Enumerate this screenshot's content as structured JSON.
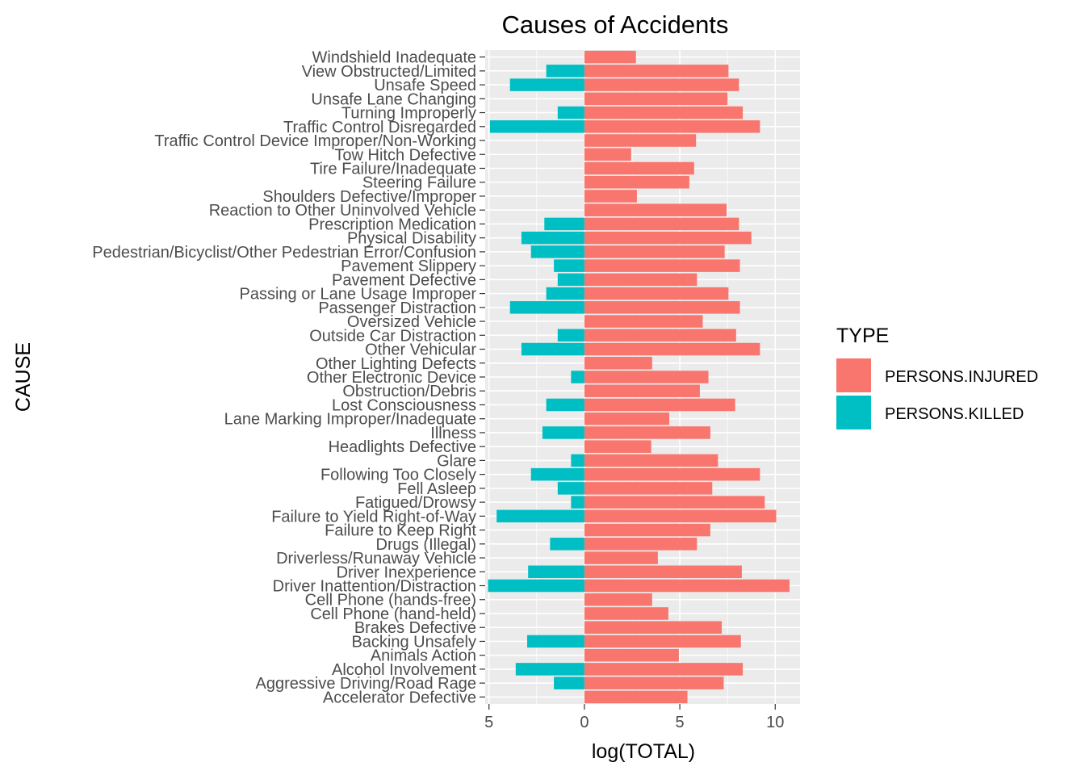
{
  "chart_data": {
    "type": "bar",
    "orientation": "horizontal",
    "title": "Causes of Accidents",
    "xlabel": "log(TOTAL)",
    "ylabel": "CAUSE",
    "x_tick_labels": [
      "5",
      "0",
      "5",
      "10"
    ],
    "x_tick_values": [
      -5,
      0,
      5,
      10
    ],
    "xlim": [
      -5.2,
      11.3
    ],
    "grid": true,
    "panel_background": "#ebebeb",
    "legend": {
      "title": "TYPE",
      "placement": "right"
    },
    "categories": [
      "Accelerator Defective",
      "Aggressive Driving/Road Rage",
      "Alcohol Involvement",
      "Animals Action",
      "Backing Unsafely",
      "Brakes Defective",
      "Cell Phone (hand-held)",
      "Cell Phone (hands-free)",
      "Driver Inattention/Distraction",
      "Driver Inexperience",
      "Driverless/Runaway Vehicle",
      "Drugs (Illegal)",
      "Failure to Keep Right",
      "Failure to Yield Right-of-Way",
      "Fatigued/Drowsy",
      "Fell Asleep",
      "Following Too Closely",
      "Glare",
      "Headlights Defective",
      "Illness",
      "Lane Marking Improper/Inadequate",
      "Lost Consciousness",
      "Obstruction/Debris",
      "Other Electronic Device",
      "Other Lighting Defects",
      "Other Vehicular",
      "Outside Car Distraction",
      "Oversized Vehicle",
      "Passenger Distraction",
      "Passing or Lane Usage Improper",
      "Pavement Defective",
      "Pavement Slippery",
      "Pedestrian/Bicyclist/Other Pedestrian Error/Confusion",
      "Physical Disability",
      "Prescription Medication",
      "Reaction to Other Uninvolved Vehicle",
      "Shoulders Defective/Improper",
      "Steering Failure",
      "Tire Failure/Inadequate",
      "Tow Hitch Defective",
      "Traffic Control Device Improper/Non-Working",
      "Traffic Control Disregarded",
      "Turning Improperly",
      "Unsafe Lane Changing",
      "Unsafe Speed",
      "View Obstructed/Limited",
      "Windshield Inadequate"
    ],
    "series": [
      {
        "name": "PERSONS.INJURED",
        "color": "#f8766d",
        "values": [
          5.4,
          7.3,
          8.3,
          4.95,
          8.2,
          7.2,
          4.4,
          3.55,
          10.75,
          8.25,
          3.85,
          5.9,
          6.6,
          10.05,
          9.45,
          6.7,
          9.2,
          7.0,
          3.5,
          6.6,
          4.45,
          7.9,
          6.05,
          6.5,
          3.55,
          9.2,
          7.95,
          6.2,
          8.15,
          7.55,
          5.9,
          8.15,
          7.35,
          8.75,
          8.1,
          7.45,
          2.75,
          5.5,
          5.75,
          2.45,
          5.85,
          9.2,
          8.3,
          7.5,
          8.1,
          7.55,
          2.7
        ]
      },
      {
        "name": "PERSONS.KILLED",
        "color": "#00bfc4",
        "values": [
          0,
          -1.6,
          -3.6,
          0,
          -3.0,
          0,
          0,
          0,
          -5.05,
          -2.95,
          0,
          -1.8,
          0,
          -4.6,
          -0.7,
          -1.4,
          -2.8,
          -0.7,
          0,
          -2.2,
          0,
          -2.0,
          0,
          -0.7,
          0,
          -3.3,
          -1.4,
          0,
          -3.9,
          -2.0,
          -1.4,
          -1.6,
          -2.8,
          -3.3,
          -2.1,
          0,
          0,
          0,
          0,
          0,
          0,
          -4.95,
          -1.4,
          0,
          -3.9,
          -2.0,
          0
        ]
      }
    ]
  }
}
